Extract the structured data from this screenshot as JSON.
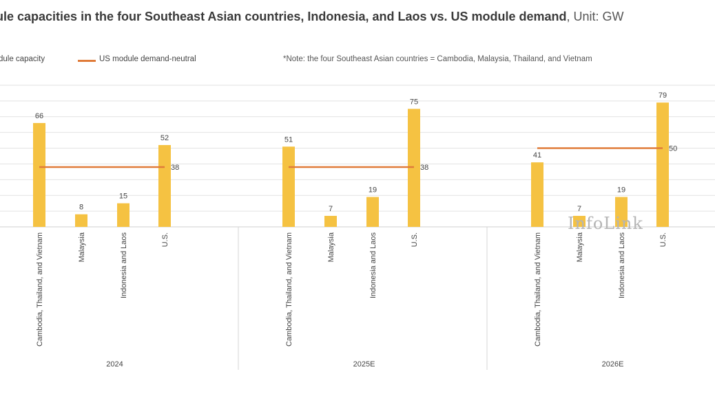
{
  "title": {
    "main": "ule capacities in the four Southeast Asian countries, Indonesia, and Laos vs. US module demand",
    "unit": ", Unit: GW"
  },
  "legend": {
    "bars_label": "dule capacity",
    "line_label": "US module demand-neutral"
  },
  "note": "*Note: the four Southeast Asian countries = Cambodia, Malaysia, Thailand, and Vietnam",
  "watermark": "InfoLink",
  "colors": {
    "bar": "#F5C242",
    "line": "#E07B39",
    "grid": "#e2e2e2"
  },
  "chart_data": {
    "type": "bar",
    "categories": [
      "Cambodia, Thailand, and Vietnam",
      "Malaysia",
      "Indonesia and Laos",
      "U.S."
    ],
    "groups": [
      {
        "year": "2024",
        "values": [
          66,
          8,
          15,
          52
        ],
        "line_value": 38
      },
      {
        "year": "2025E",
        "values": [
          51,
          7,
          19,
          75
        ],
        "line_value": 38
      },
      {
        "year": "2026E",
        "values": [
          41,
          7,
          19,
          79
        ],
        "line_value": 50
      }
    ],
    "series": [
      {
        "name": "dule capacity",
        "type": "bar"
      },
      {
        "name": "US module demand-neutral",
        "type": "line"
      }
    ],
    "ylim": [
      0,
      90
    ],
    "y_gridlines": 10,
    "grid": true,
    "legend_position": "top-left"
  }
}
